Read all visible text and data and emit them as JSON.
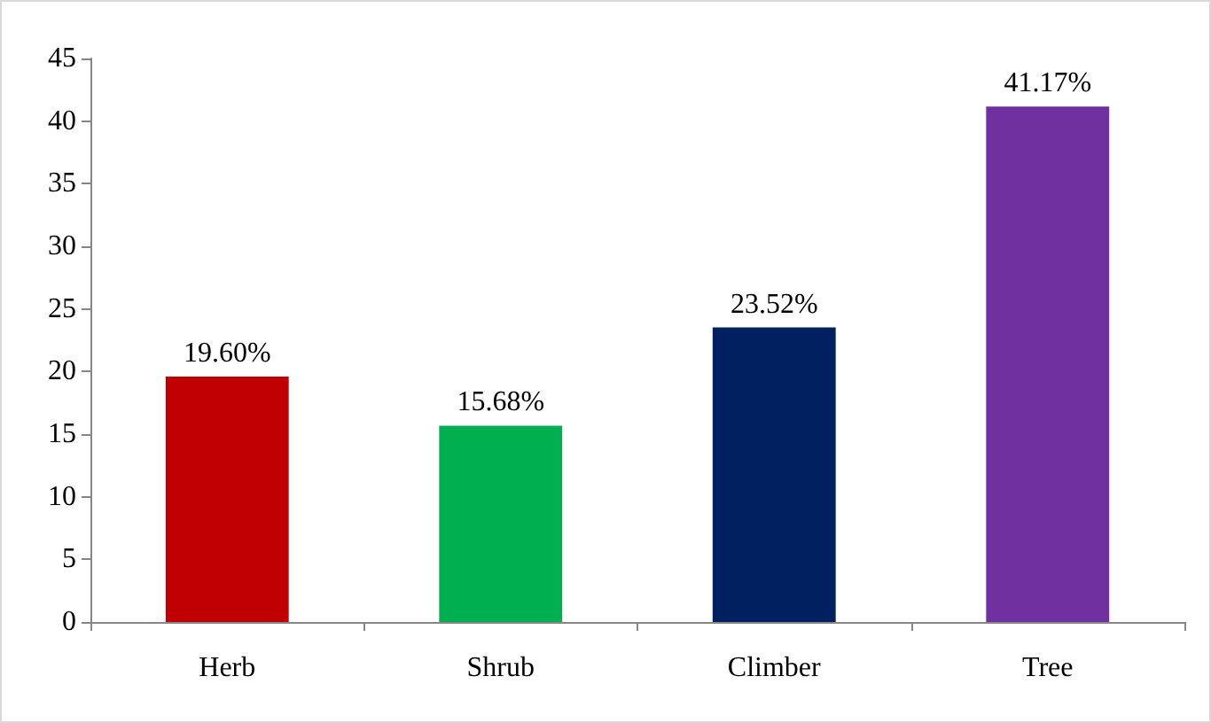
{
  "chart_data": {
    "type": "bar",
    "categories": [
      "Herb",
      "Shrub",
      "Climber",
      "Tree"
    ],
    "values": [
      19.6,
      15.68,
      23.52,
      41.17
    ],
    "colors": [
      "#c00000",
      "#00b050",
      "#002060",
      "#7030a0"
    ],
    "value_labels": [
      "19.60%",
      "15.68%",
      "23.52%",
      "41.17%"
    ],
    "ylim": [
      0,
      45
    ],
    "yticks": [
      0,
      5,
      10,
      15,
      20,
      25,
      30,
      35,
      40,
      45
    ],
    "grid": false
  }
}
